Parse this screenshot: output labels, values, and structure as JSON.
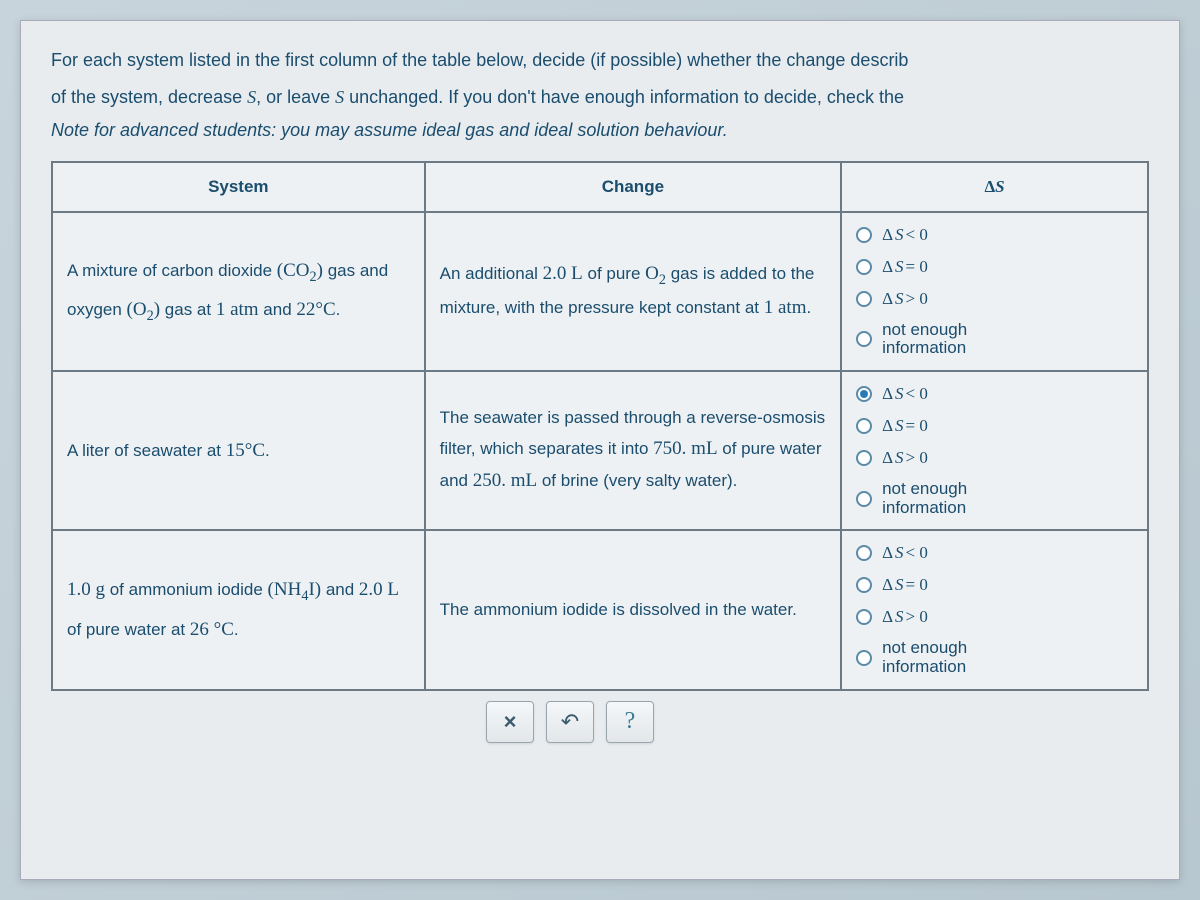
{
  "intro_line1": "For each system listed in the first column of the table below, decide (if possible) whether the change describ",
  "intro_line2": "of the system, decrease S, or leave S unchanged. If you don't have enough information to decide, check the",
  "note": "Note for advanced students: you may assume ideal gas and ideal solution behaviour.",
  "headers": {
    "system": "System",
    "change": "Change",
    "delta": "ΔS"
  },
  "options": {
    "lt": "ΔS < 0",
    "eq": "ΔS = 0",
    "gt": "ΔS > 0",
    "na": "not enough information"
  },
  "rows": [
    {
      "system_html": "A mixture of carbon dioxide <span class='serif big'>(CO<sub>2</sub>)</span> gas and oxygen <span class='serif big'>(O<sub>2</sub>)</span> gas at <span class='serif big'>1 atm</span> and <span class='serif big'>22°C</span>.",
      "change_html": "An additional <span class='serif big'>2.0 L</span> of pure <span class='serif big'>O<sub>2</sub></span> gas is added to the mixture, with the pressure kept constant at <span class='serif big'>1 atm</span>.",
      "selected": null
    },
    {
      "system_html": "A liter of seawater at <span class='serif big'>15°C</span>.",
      "change_html": "The seawater is passed through a reverse-osmosis filter, which separates it into <span class='serif big'>750. mL</span> of pure water and <span class='serif big'>250. mL</span> of brine (very salty water).",
      "selected": "lt"
    },
    {
      "system_html": "<span class='serif big'>1.0 g</span> of ammonium iodide <span class='serif big'>(NH<sub>4</sub>I)</span> and <span class='serif big'>2.0 L</span> of pure water at <span class='serif big'>26 °C</span>.",
      "change_html": "The ammonium iodide is dissolved in the water.",
      "selected": null
    }
  ],
  "buttons": {
    "close": "×",
    "reset": "↶",
    "help": "?"
  },
  "colors": {
    "text": "#1a4d6e",
    "border": "#6b7a85",
    "radio_border": "#5a8aa8",
    "radio_fill": "#2a7ab8",
    "page_bg": "#e8ecef",
    "body_bg": "#c8d4dc"
  }
}
